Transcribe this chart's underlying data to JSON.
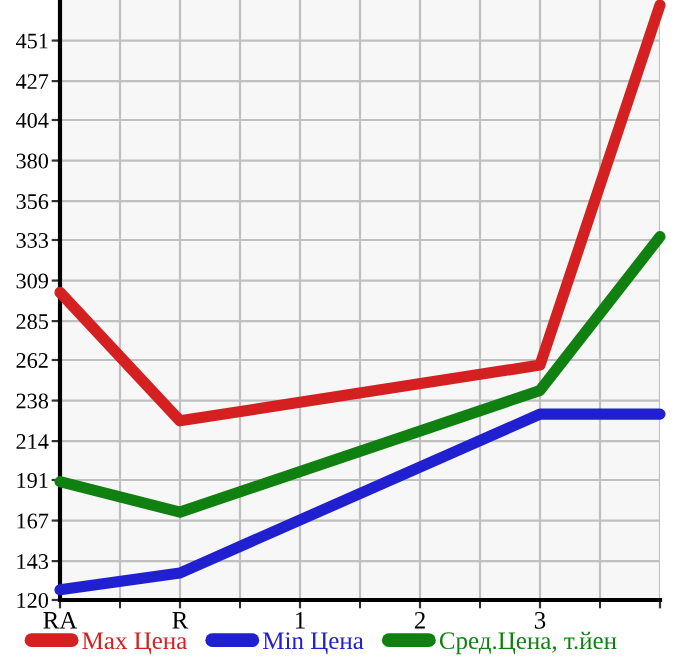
{
  "chart_data": {
    "type": "line",
    "categories": [
      "RA",
      "R",
      "1",
      "2",
      "3",
      null
    ],
    "series": [
      {
        "name": "Max Цена",
        "color": "#d42020",
        "values": [
          302,
          226,
          null,
          null,
          259,
          472
        ]
      },
      {
        "name": "Min Цена",
        "color": "#2020d0",
        "values": [
          126,
          136,
          null,
          null,
          230,
          230
        ]
      },
      {
        "name": "Сред.Цена, т.йен",
        "color": "#108010",
        "values": [
          190,
          172,
          null,
          null,
          244,
          335
        ]
      }
    ],
    "ylim": [
      120,
      475
    ],
    "yticks": [
      120,
      143,
      167,
      191,
      214,
      238,
      262,
      285,
      309,
      333,
      356,
      380,
      404,
      427,
      451
    ],
    "grid": true,
    "legend": "bottom",
    "marker": "none",
    "line_style": "solid"
  }
}
